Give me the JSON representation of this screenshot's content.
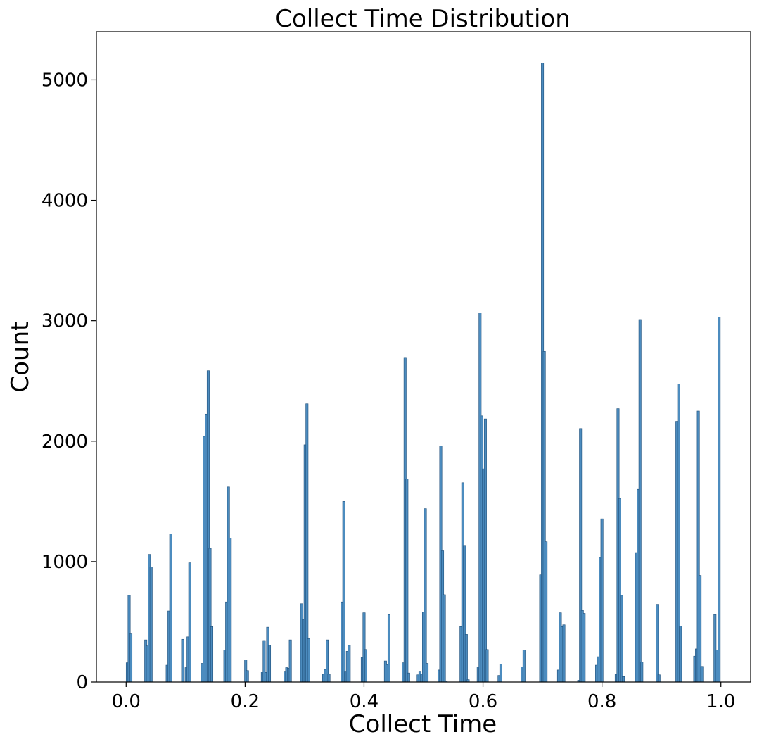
{
  "chart_data": {
    "type": "bar",
    "title": "Collect Time Distribution",
    "xlabel": "Collect Time",
    "ylabel": "Count",
    "xlim": [
      -0.05,
      1.05
    ],
    "ylim": [
      0,
      5400
    ],
    "xticks": [
      0.0,
      0.2,
      0.4,
      0.6,
      0.8,
      1.0
    ],
    "xtick_labels": [
      "0.0",
      "0.2",
      "0.4",
      "0.6",
      "0.8",
      "1.0"
    ],
    "yticks": [
      0,
      1000,
      2000,
      3000,
      4000,
      5000
    ],
    "ytick_labels": [
      "0",
      "1000",
      "2000",
      "3000",
      "4000",
      "5000"
    ],
    "grid": false,
    "bar_color": "#4c8cbf",
    "bar_edge_color": "#1f4f7a",
    "bin_width": 0.004,
    "bars": [
      {
        "x": 0.002,
        "y": 160
      },
      {
        "x": 0.005,
        "y": 720
      },
      {
        "x": 0.008,
        "y": 400
      },
      {
        "x": 0.033,
        "y": 350
      },
      {
        "x": 0.036,
        "y": 300
      },
      {
        "x": 0.039,
        "y": 1060
      },
      {
        "x": 0.042,
        "y": 955
      },
      {
        "x": 0.069,
        "y": 140
      },
      {
        "x": 0.072,
        "y": 590
      },
      {
        "x": 0.075,
        "y": 1230
      },
      {
        "x": 0.095,
        "y": 355
      },
      {
        "x": 0.101,
        "y": 120
      },
      {
        "x": 0.104,
        "y": 375
      },
      {
        "x": 0.107,
        "y": 990
      },
      {
        "x": 0.128,
        "y": 155
      },
      {
        "x": 0.131,
        "y": 2040
      },
      {
        "x": 0.135,
        "y": 2225
      },
      {
        "x": 0.138,
        "y": 2585
      },
      {
        "x": 0.141,
        "y": 1110
      },
      {
        "x": 0.144,
        "y": 460
      },
      {
        "x": 0.166,
        "y": 265
      },
      {
        "x": 0.169,
        "y": 665
      },
      {
        "x": 0.172,
        "y": 1620
      },
      {
        "x": 0.175,
        "y": 1195
      },
      {
        "x": 0.201,
        "y": 185
      },
      {
        "x": 0.204,
        "y": 95
      },
      {
        "x": 0.229,
        "y": 85
      },
      {
        "x": 0.232,
        "y": 345
      },
      {
        "x": 0.235,
        "y": 80
      },
      {
        "x": 0.238,
        "y": 455
      },
      {
        "x": 0.241,
        "y": 305
      },
      {
        "x": 0.267,
        "y": 90
      },
      {
        "x": 0.27,
        "y": 120
      },
      {
        "x": 0.273,
        "y": 115
      },
      {
        "x": 0.276,
        "y": 350
      },
      {
        "x": 0.295,
        "y": 650
      },
      {
        "x": 0.298,
        "y": 520
      },
      {
        "x": 0.301,
        "y": 1970
      },
      {
        "x": 0.304,
        "y": 2310
      },
      {
        "x": 0.307,
        "y": 360
      },
      {
        "x": 0.332,
        "y": 65
      },
      {
        "x": 0.335,
        "y": 105
      },
      {
        "x": 0.338,
        "y": 350
      },
      {
        "x": 0.341,
        "y": 65
      },
      {
        "x": 0.363,
        "y": 665
      },
      {
        "x": 0.366,
        "y": 1500
      },
      {
        "x": 0.369,
        "y": 90
      },
      {
        "x": 0.372,
        "y": 255
      },
      {
        "x": 0.375,
        "y": 305
      },
      {
        "x": 0.397,
        "y": 205
      },
      {
        "x": 0.4,
        "y": 575
      },
      {
        "x": 0.403,
        "y": 270
      },
      {
        "x": 0.436,
        "y": 175
      },
      {
        "x": 0.439,
        "y": 145
      },
      {
        "x": 0.442,
        "y": 560
      },
      {
        "x": 0.466,
        "y": 160
      },
      {
        "x": 0.469,
        "y": 2695
      },
      {
        "x": 0.472,
        "y": 1685
      },
      {
        "x": 0.475,
        "y": 75
      },
      {
        "x": 0.491,
        "y": 60
      },
      {
        "x": 0.494,
        "y": 90
      },
      {
        "x": 0.497,
        "y": 65
      },
      {
        "x": 0.5,
        "y": 580
      },
      {
        "x": 0.503,
        "y": 1440
      },
      {
        "x": 0.506,
        "y": 155
      },
      {
        "x": 0.526,
        "y": 100
      },
      {
        "x": 0.529,
        "y": 1960
      },
      {
        "x": 0.532,
        "y": 1090
      },
      {
        "x": 0.535,
        "y": 725
      },
      {
        "x": 0.538,
        "y": 10
      },
      {
        "x": 0.563,
        "y": 460
      },
      {
        "x": 0.566,
        "y": 1655
      },
      {
        "x": 0.569,
        "y": 1135
      },
      {
        "x": 0.572,
        "y": 395
      },
      {
        "x": 0.575,
        "y": 20
      },
      {
        "x": 0.592,
        "y": 125
      },
      {
        "x": 0.595,
        "y": 3065
      },
      {
        "x": 0.598,
        "y": 2210
      },
      {
        "x": 0.601,
        "y": 1770
      },
      {
        "x": 0.604,
        "y": 2185
      },
      {
        "x": 0.607,
        "y": 270
      },
      {
        "x": 0.627,
        "y": 55
      },
      {
        "x": 0.63,
        "y": 150
      },
      {
        "x": 0.666,
        "y": 125
      },
      {
        "x": 0.669,
        "y": 265
      },
      {
        "x": 0.697,
        "y": 890
      },
      {
        "x": 0.7,
        "y": 5140
      },
      {
        "x": 0.703,
        "y": 2745
      },
      {
        "x": 0.706,
        "y": 1165
      },
      {
        "x": 0.727,
        "y": 100
      },
      {
        "x": 0.73,
        "y": 575
      },
      {
        "x": 0.733,
        "y": 460
      },
      {
        "x": 0.736,
        "y": 475
      },
      {
        "x": 0.761,
        "y": 15
      },
      {
        "x": 0.764,
        "y": 2105
      },
      {
        "x": 0.767,
        "y": 595
      },
      {
        "x": 0.77,
        "y": 570
      },
      {
        "x": 0.791,
        "y": 140
      },
      {
        "x": 0.794,
        "y": 210
      },
      {
        "x": 0.797,
        "y": 1035
      },
      {
        "x": 0.8,
        "y": 1355
      },
      {
        "x": 0.824,
        "y": 65
      },
      {
        "x": 0.827,
        "y": 2270
      },
      {
        "x": 0.83,
        "y": 1525
      },
      {
        "x": 0.833,
        "y": 720
      },
      {
        "x": 0.836,
        "y": 45
      },
      {
        "x": 0.858,
        "y": 1075
      },
      {
        "x": 0.861,
        "y": 1600
      },
      {
        "x": 0.864,
        "y": 3010
      },
      {
        "x": 0.867,
        "y": 165
      },
      {
        "x": 0.893,
        "y": 645
      },
      {
        "x": 0.896,
        "y": 60
      },
      {
        "x": 0.926,
        "y": 2165
      },
      {
        "x": 0.929,
        "y": 2475
      },
      {
        "x": 0.932,
        "y": 465
      },
      {
        "x": 0.956,
        "y": 215
      },
      {
        "x": 0.959,
        "y": 275
      },
      {
        "x": 0.962,
        "y": 2250
      },
      {
        "x": 0.965,
        "y": 885
      },
      {
        "x": 0.968,
        "y": 130
      },
      {
        "x": 0.99,
        "y": 560
      },
      {
        "x": 0.993,
        "y": 265
      },
      {
        "x": 0.997,
        "y": 3030
      }
    ]
  }
}
